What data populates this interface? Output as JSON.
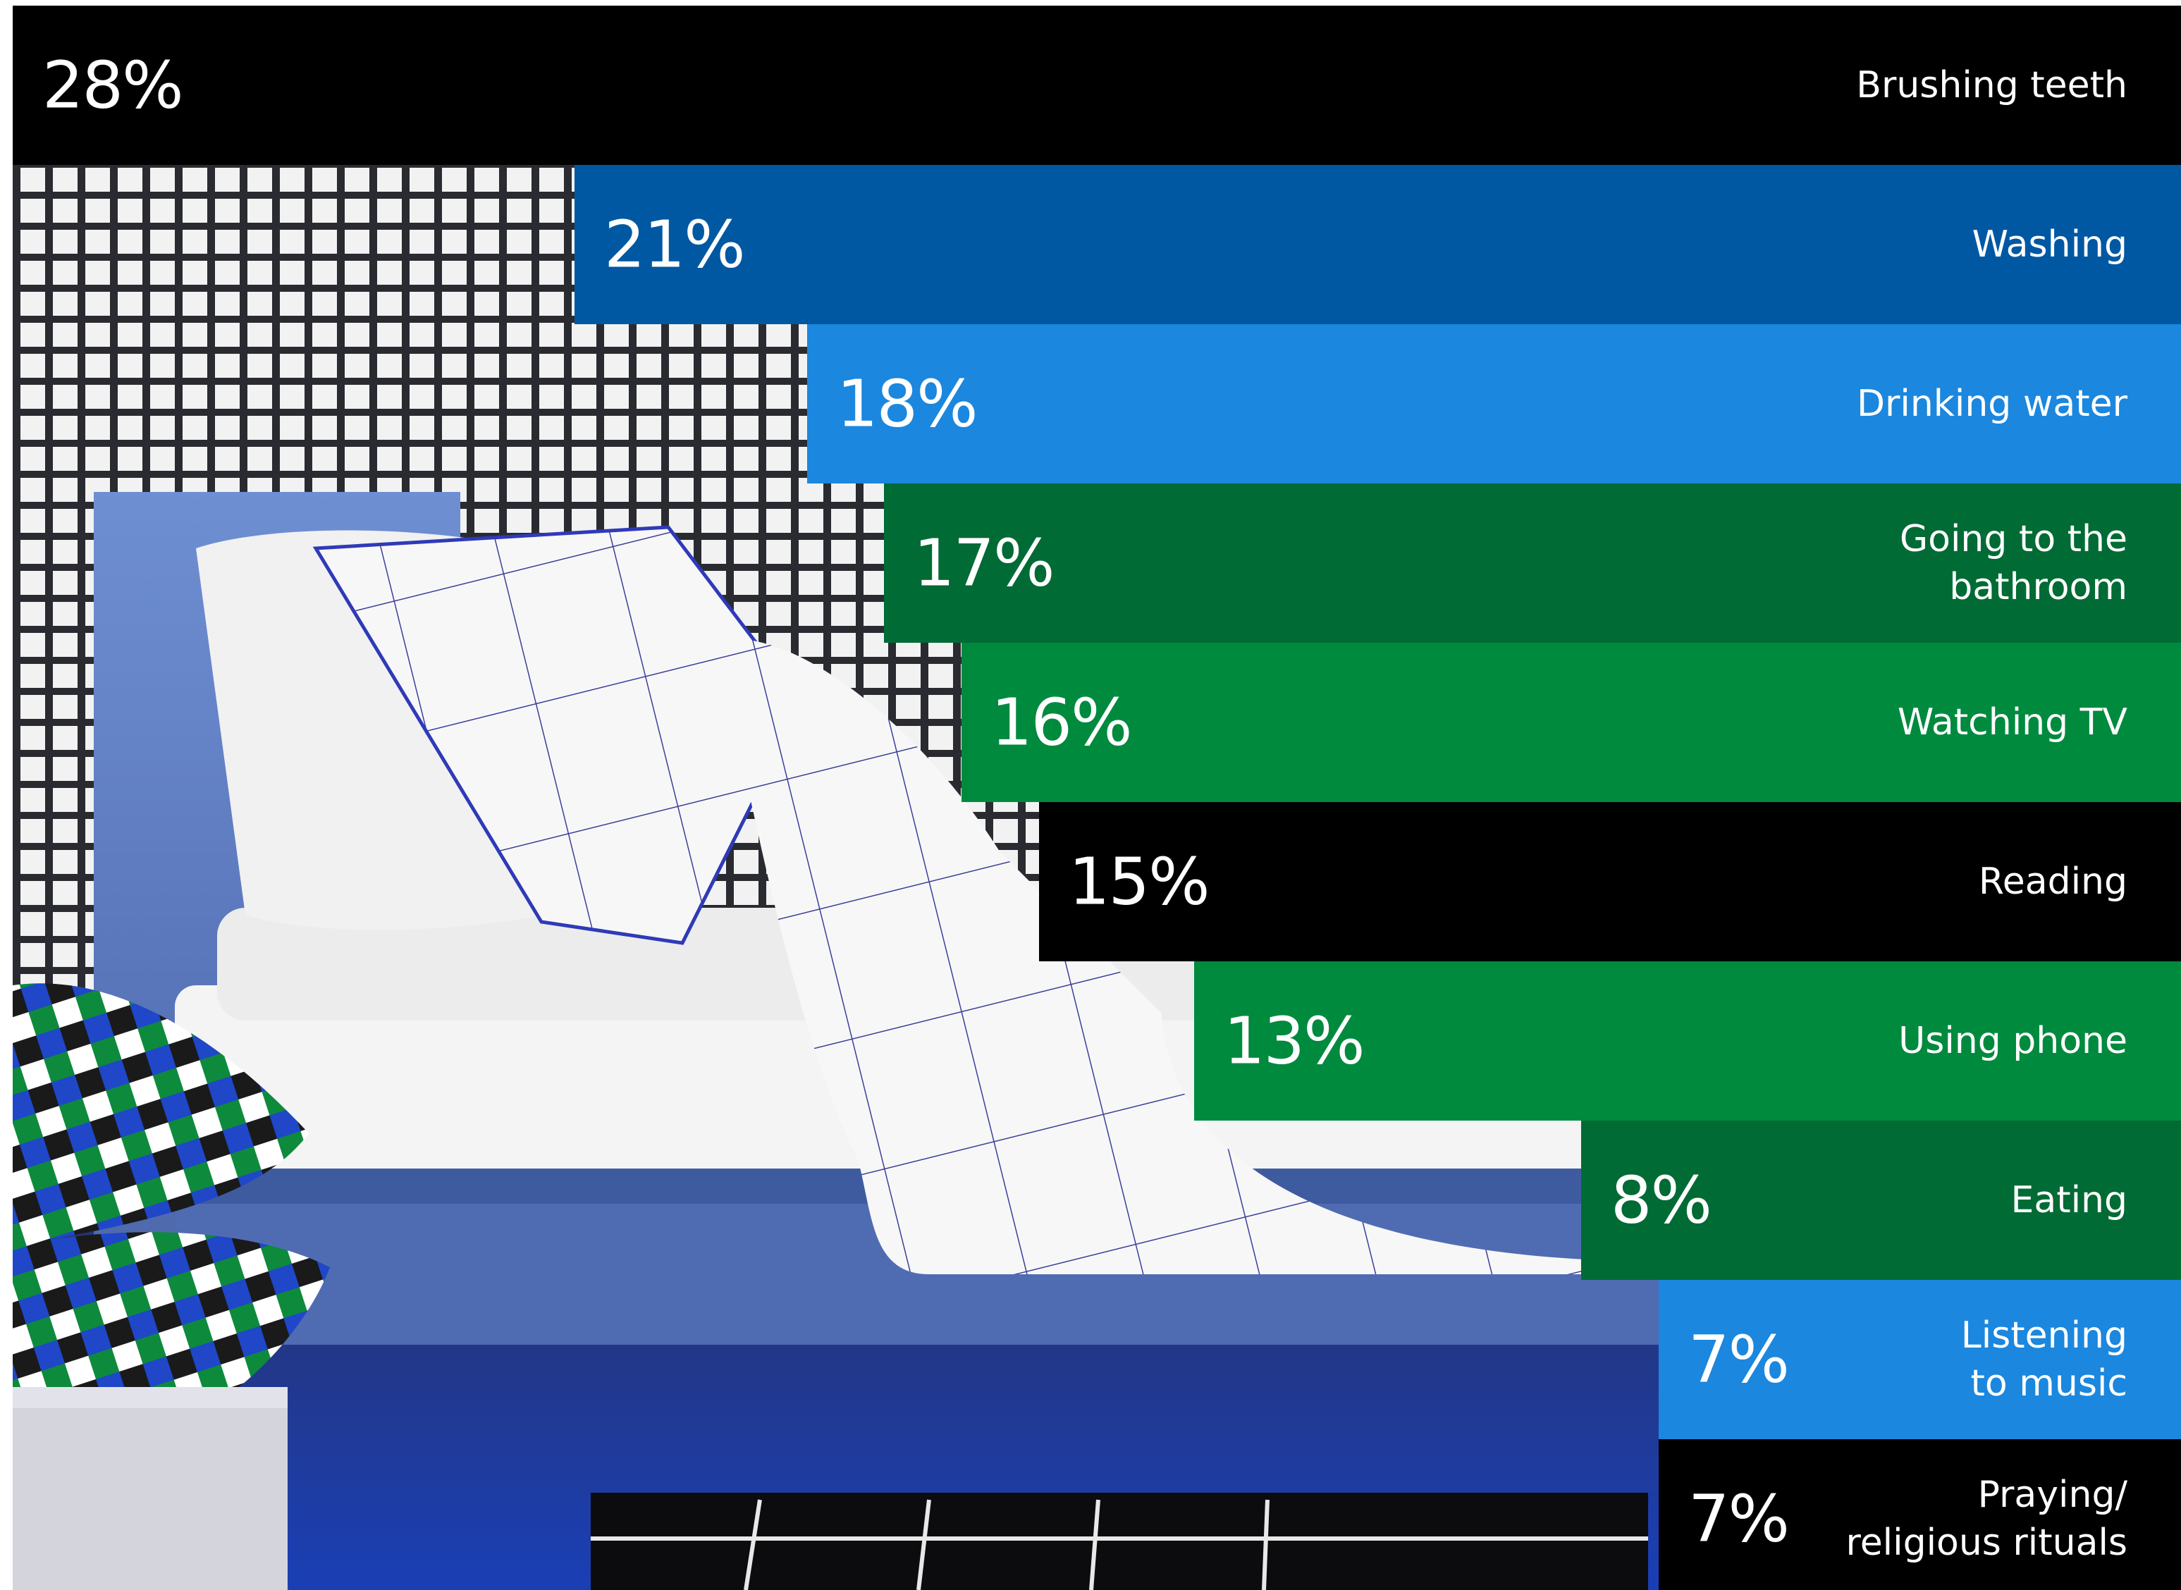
{
  "chart_data": {
    "type": "bar",
    "orientation": "horizontal",
    "categories": [
      "Brushing teeth",
      "Washing",
      "Drinking water",
      "Going to the bathroom",
      "Watching TV",
      "Reading",
      "Using phone",
      "Eating",
      "Listening to music",
      "Praying/ religious rituals"
    ],
    "values": [
      28,
      21,
      18,
      17,
      16,
      15,
      13,
      8,
      7,
      7
    ],
    "value_labels": [
      "28%",
      "21%",
      "18%",
      "17%",
      "16%",
      "15%",
      "13%",
      "8%",
      "7%",
      "7%"
    ],
    "label_lines": [
      [
        "Brushing teeth"
      ],
      [
        "Washing"
      ],
      [
        "Drinking water"
      ],
      [
        "Going to the",
        "bathroom"
      ],
      [
        "Watching TV"
      ],
      [
        "Reading"
      ],
      [
        "Using phone"
      ],
      [
        "Eating"
      ],
      [
        "Listening",
        "to music"
      ],
      [
        "Praying/",
        "religious rituals"
      ]
    ],
    "bar_colors": [
      "#000000",
      "#0058a3",
      "#1b87de",
      "#006b34",
      "#008a3e",
      "#000000",
      "#008a3e",
      "#006b34",
      "#1b87de",
      "#000000"
    ],
    "xlim": [
      0,
      28
    ],
    "title": "",
    "xlabel": "",
    "ylabel": ""
  },
  "background": {
    "scene": "photo-of-made-bed",
    "colors": {
      "bed_frame": "#5b79c0",
      "curtain_lines": "#2b2c32",
      "bedding": "#f6f6f6",
      "floor": "#1d2770"
    }
  }
}
